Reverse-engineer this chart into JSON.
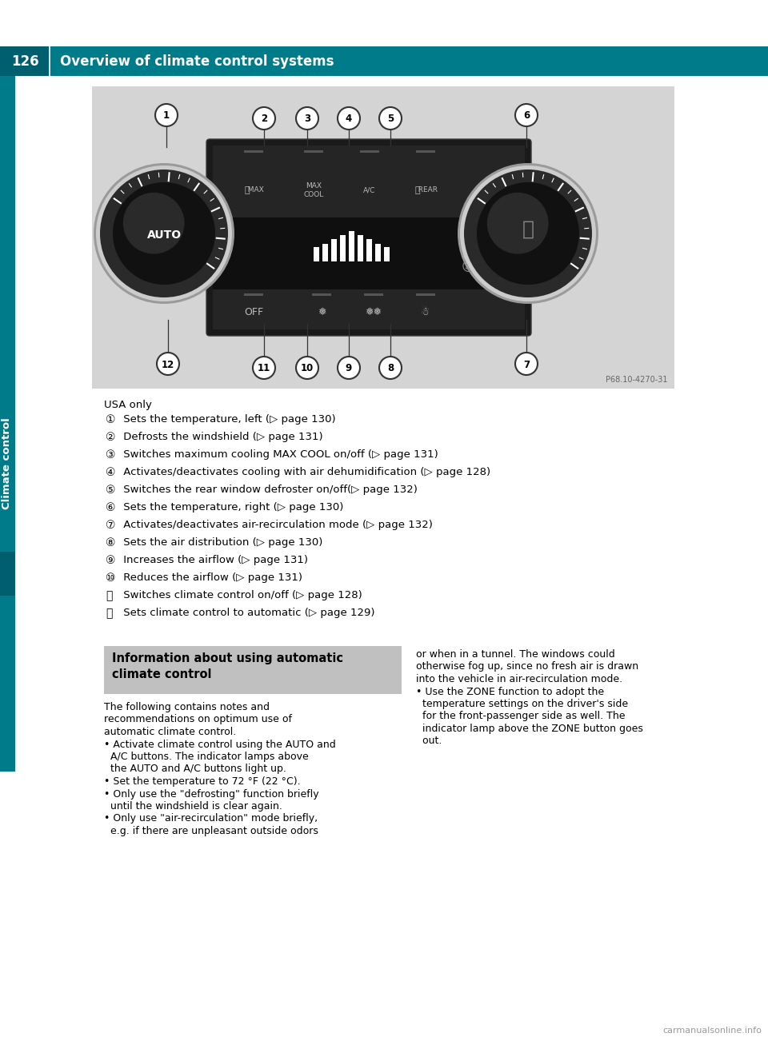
{
  "page_bg": "#ffffff",
  "header_bg": "#007b8a",
  "header_dark_bg": "#005f6e",
  "header_text": "Overview of climate control systems",
  "header_page_num": "126",
  "header_text_color": "#ffffff",
  "sidebar_color": "#007b8a",
  "sidebar_dark": "#005f6e",
  "image_bg": "#d4d4d4",
  "panel_bg": "#1e1e1e",
  "panel_top_bg": "#2d2d2d",
  "panel_mid_bg": "#111111",
  "usa_only": "USA only",
  "items": [
    [
      "①",
      " Sets the temperature, left (▷ page 130)"
    ],
    [
      "②",
      " Defrosts the windshield (▷ page 131)"
    ],
    [
      "③",
      " Switches maximum cooling MAX COOL on/off (▷ page 131)"
    ],
    [
      "④",
      " Activates/deactivates cooling with air dehumidification (▷ page 128)"
    ],
    [
      "⑤",
      " Switches the rear window defroster on/off(▷ page 132)"
    ],
    [
      "⑥",
      " Sets the temperature, right (▷ page 130)"
    ],
    [
      "⑦",
      " Activates/deactivates air-recirculation mode (▷ page 132)"
    ],
    [
      "⑧",
      " Sets the air distribution (▷ page 130)"
    ],
    [
      "⑨",
      " Increases the airflow (▷ page 131)"
    ],
    [
      "⑩",
      " Reduces the airflow (▷ page 131)"
    ],
    [
      "⑪",
      " Switches climate control on/off (▷ page 128)"
    ],
    [
      "⑫",
      " Sets climate control to automatic (▷ page 129)"
    ]
  ],
  "info_box_title": "Information about using automatic\nclimate control",
  "info_box_bg": "#c0c0c0",
  "info_body_lines": [
    "The following contains notes and",
    "recommendations on optimum use of",
    "automatic climate control.",
    "• Activate climate control using the ■AUTO■ and",
    "  ■A/C■ buttons. The indicator lamps above",
    "  the ■AUTO■ and ■A/C■ buttons light up.",
    "• Set the temperature to 72 °F (22 °C).",
    "• Only use the \"defrosting\" function briefly",
    "  until the windshield is clear again.",
    "• Only use \"air-recirculation\" mode briefly,",
    "  e.g. if there are unpleasant outside odors"
  ],
  "right_col_lines": [
    "or when in a tunnel. The windows could",
    "otherwise fog up, since no fresh air is drawn",
    "into the vehicle in air-recirculation mode.",
    "• Use the ZONE function to adopt the",
    "  temperature settings on the driver's side",
    "  for the front-passenger side as well. The",
    "  indicator lamp above the ■ZONE■ button goes",
    "  out."
  ],
  "info_body_lines_clean": [
    "The following contains notes and",
    "recommendations on optimum use of",
    "automatic climate control.",
    "• Activate climate control using the AUTO and",
    "  A/C buttons. The indicator lamps above",
    "  the AUTO and A/C buttons light up.",
    "• Set the temperature to 72 °F (22 °C).",
    "• Only use the \"defrosting\" function briefly",
    "  until the windshield is clear again.",
    "• Only use \"air-recirculation\" mode briefly,",
    "  e.g. if there are unpleasant outside odors"
  ],
  "right_col_lines_clean": [
    "or when in a tunnel. The windows could",
    "otherwise fog up, since no fresh air is drawn",
    "into the vehicle in air-recirculation mode.",
    "• Use the ZONE function to adopt the",
    "  temperature settings on the driver's side",
    "  for the front-passenger side as well. The",
    "  indicator lamp above the ZONE button goes",
    "  out."
  ],
  "climate_label": "Climate control",
  "watermark": "carmanualsonline.info",
  "photo_ref": "P68.10-4270-31"
}
